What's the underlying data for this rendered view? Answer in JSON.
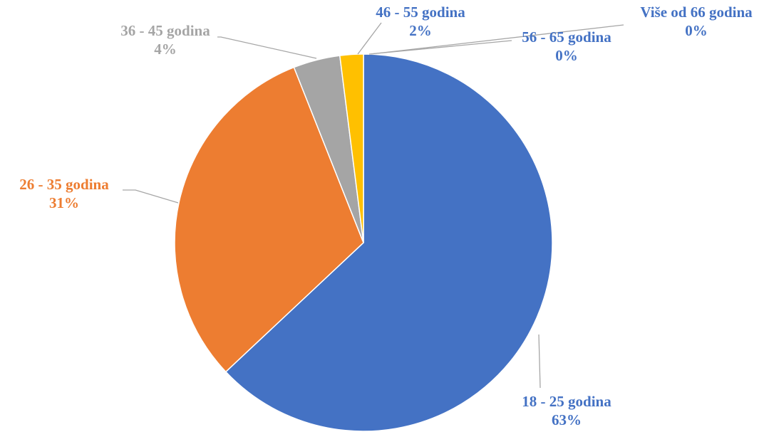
{
  "chart_data": {
    "type": "pie",
    "title": "",
    "start_angle_deg": 0,
    "direction": "clockwise",
    "slices": [
      {
        "label": "18 - 25 godina",
        "percent_label": "63%",
        "value": 63,
        "color": "#4472C4",
        "label_color": "#4472C4"
      },
      {
        "label": "26 - 35 godina",
        "percent_label": "31%",
        "value": 31,
        "color": "#ED7D31",
        "label_color": "#ED7D31"
      },
      {
        "label": "36 - 45 godina",
        "percent_label": "4%",
        "value": 4,
        "color": "#A5A5A5",
        "label_color": "#A5A5A5"
      },
      {
        "label": "46 - 55 godina",
        "percent_label": "2%",
        "value": 2,
        "color": "#FFC000",
        "label_color": "#4472C4"
      },
      {
        "label": "56 - 65 godina",
        "percent_label": "0%",
        "value": 0,
        "color": "#5B9BD5",
        "label_color": "#4472C4"
      },
      {
        "label": "Više od 66 godina",
        "percent_label": "0%",
        "value": 0,
        "color": "#70AD47",
        "label_color": "#4472C4"
      }
    ],
    "leader_line_color": "#A6A6A6"
  }
}
